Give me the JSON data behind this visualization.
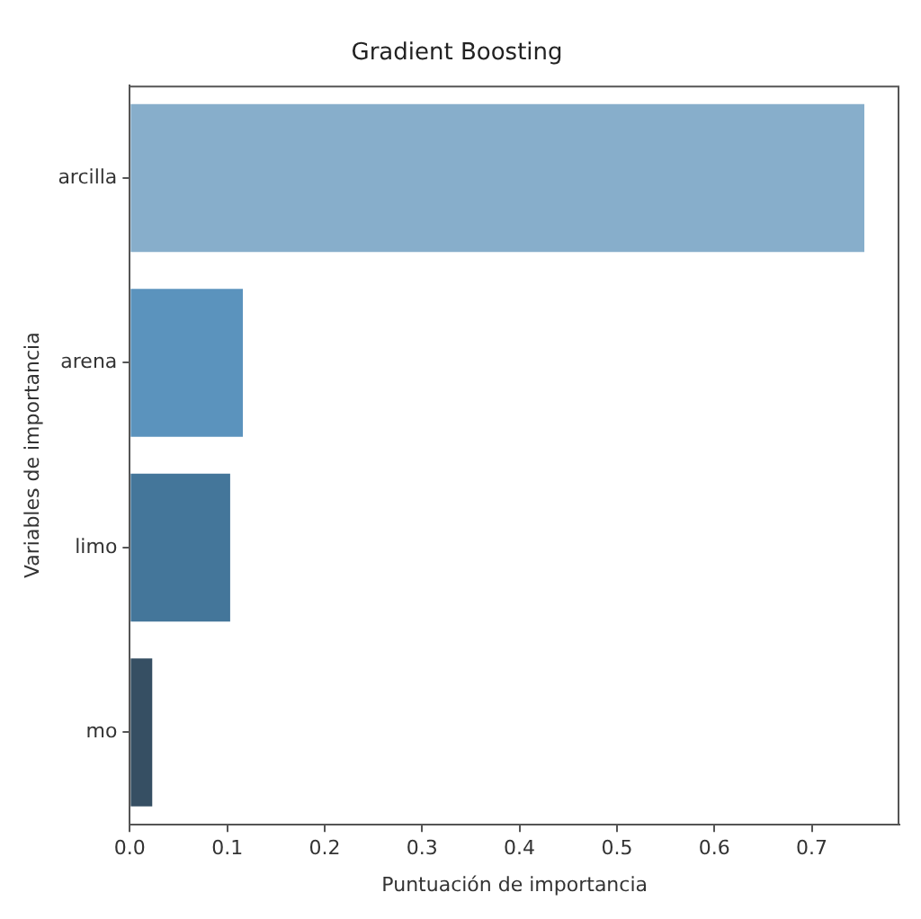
{
  "chart_data": {
    "type": "bar",
    "orientation": "horizontal",
    "title": "Gradient Boosting",
    "xlabel": "Puntuación de importancia",
    "ylabel": "Variables de importancia",
    "categories": [
      "arcilla",
      "arena",
      "limo",
      "mo"
    ],
    "values": [
      0.754,
      0.116,
      0.103,
      0.023
    ],
    "colors": [
      "#87aecb",
      "#5b93bd",
      "#44769a",
      "#364f63"
    ],
    "xlim": [
      0,
      0.79
    ],
    "xticks": [
      {
        "value": 0,
        "label": "0.0"
      },
      0.1,
      0.2,
      0.3,
      0.4,
      0.5,
      0.6,
      0.7
    ],
    "grid": false,
    "legend": false
  }
}
